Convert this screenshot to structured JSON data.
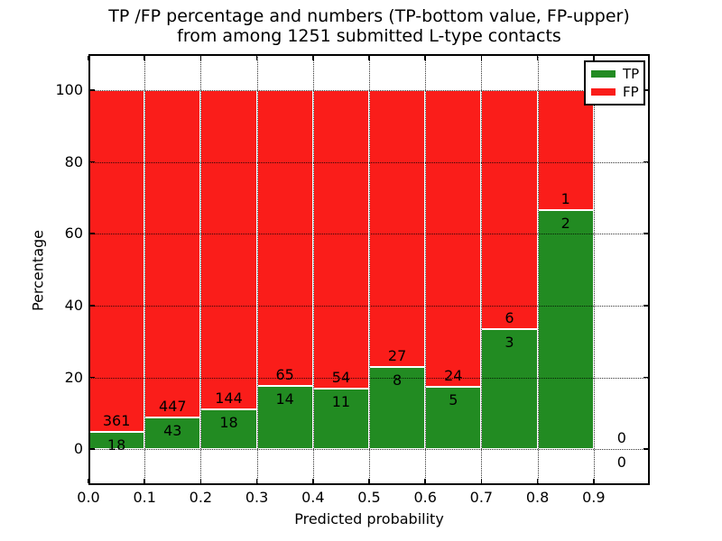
{
  "figure": {
    "title_line1": "TP /FP percentage and numbers (TP-bottom value, FP-upper)",
    "title_line2": "from among 1251 submitted L-type contacts",
    "xlabel": "Predicted probability",
    "ylabel": "Percentage"
  },
  "legend": {
    "entries": [
      {
        "label": "TP",
        "color": "#228B22"
      },
      {
        "label": "FP",
        "color": "#FA1D1A"
      }
    ]
  },
  "colors": {
    "tp_green": "#228B22",
    "fp_red": "#FA1D1A",
    "background": "#ffffff",
    "grid": "#000000"
  },
  "chart_data": {
    "type": "bar",
    "stacked": true,
    "normalized_to_percent": true,
    "title": "TP /FP percentage and numbers (TP-bottom value, FP-upper) from among 1251 submitted L-type contacts",
    "xlabel": "Predicted probability",
    "ylabel": "Percentage",
    "total_submitted_contacts": 1251,
    "bin_width": 0.1,
    "bin_starts": [
      0.0,
      0.1,
      0.2,
      0.3,
      0.4,
      0.5,
      0.6,
      0.7,
      0.8,
      0.9
    ],
    "series": [
      {
        "name": "TP",
        "color": "#228B22",
        "values": [
          18,
          43,
          18,
          14,
          11,
          8,
          5,
          3,
          2,
          0
        ]
      },
      {
        "name": "FP",
        "color": "#FA1D1A",
        "values": [
          361,
          447,
          144,
          65,
          54,
          27,
          24,
          6,
          1,
          0
        ]
      }
    ],
    "x_ticks": [
      "0.0",
      "0.1",
      "0.2",
      "0.3",
      "0.4",
      "0.5",
      "0.6",
      "0.7",
      "0.8",
      "0.9"
    ],
    "y_ticks": [
      0,
      20,
      40,
      60,
      80,
      100
    ],
    "xlim": [
      0.0,
      1.0
    ],
    "ylim": [
      -10,
      110
    ],
    "grid": "dotted",
    "legend_position": "upper right"
  }
}
